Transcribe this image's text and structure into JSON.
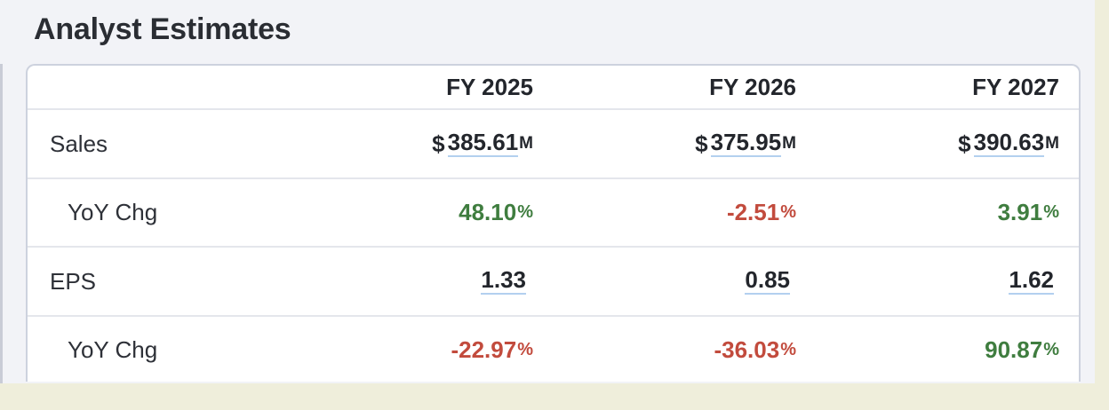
{
  "title": "Analyst Estimates",
  "colors": {
    "positive": "#3f7d3f",
    "negative": "#c24b3d",
    "underline": "#b3d0ef",
    "panel_bg": "#f2f3f7",
    "page_bg": "#efeedb"
  },
  "table": {
    "columns": [
      "FY 2025",
      "FY 2026",
      "FY 2027"
    ],
    "sales": {
      "label": "Sales",
      "currency": "$",
      "unit": "M",
      "values": [
        "385.61",
        "375.95",
        "390.63"
      ]
    },
    "sales_yoy": {
      "label": "YoY Chg",
      "values": [
        "48.10",
        "-2.51",
        "3.91"
      ],
      "unit": "%",
      "trend": [
        "positive",
        "negative",
        "positive"
      ]
    },
    "eps": {
      "label": "EPS",
      "values": [
        "1.33",
        "0.85",
        "1.62"
      ]
    },
    "eps_yoy": {
      "label": "YoY Chg",
      "values": [
        "-22.97",
        "-36.03",
        "90.87"
      ],
      "unit": "%",
      "trend": [
        "negative",
        "negative",
        "positive"
      ]
    }
  }
}
